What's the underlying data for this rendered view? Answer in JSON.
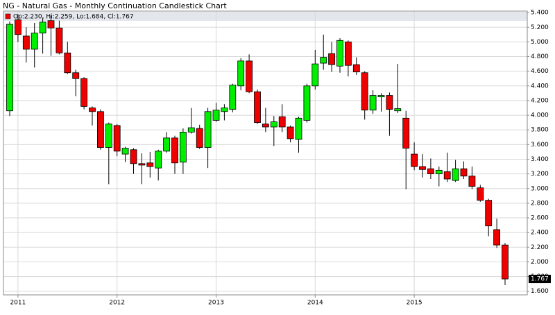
{
  "chart_data": {
    "type": "candlestick",
    "title": "NG - Natural Gas - Monthly Continuation Candlestick Chart",
    "legend": "Op:2.230, Hi:2.259, Lo:1.684, Cl:1.767",
    "last_close_label": "1.767",
    "up_color": "#00ee00",
    "down_color": "#ee0000",
    "categories": [
      null,
      "2011",
      null,
      null,
      null,
      null,
      null,
      null,
      null,
      null,
      null,
      null,
      null,
      "2012",
      null,
      null,
      null,
      null,
      null,
      null,
      null,
      null,
      null,
      null,
      null,
      "2013",
      null,
      null,
      null,
      null,
      null,
      null,
      null,
      null,
      null,
      null,
      null,
      "2014",
      null,
      null,
      null,
      null,
      null,
      null,
      null,
      null,
      null,
      null,
      null,
      "2015",
      null,
      null,
      null,
      null,
      null,
      null,
      null,
      null,
      null,
      null,
      null
    ],
    "open": [
      4.06,
      5.3,
      5.08,
      4.9,
      5.12,
      5.29,
      5.19,
      4.85,
      4.58,
      4.5,
      4.1,
      4.05,
      3.56,
      3.86,
      3.47,
      3.53,
      3.34,
      3.35,
      3.28,
      3.51,
      3.69,
      3.36,
      3.77,
      3.82,
      3.56,
      3.93,
      4.05,
      4.08,
      4.4,
      4.74,
      4.32,
      3.88,
      3.84,
      3.98,
      3.84,
      3.67,
      3.93,
      4.4,
      4.71,
      4.84,
      4.67,
      5.0,
      4.69,
      4.58,
      4.07,
      4.25,
      4.27,
      4.06,
      3.96,
      3.47,
      3.3,
      3.27,
      3.2,
      3.23,
      3.11,
      3.27,
      3.17,
      3.01,
      2.84,
      2.44,
      2.23
    ],
    "high": [
      5.28,
      5.38,
      5.2,
      5.26,
      5.33,
      5.36,
      5.29,
      5.0,
      4.62,
      4.52,
      4.12,
      4.08,
      3.9,
      3.88,
      3.57,
      3.55,
      3.48,
      3.5,
      3.53,
      3.77,
      3.72,
      3.82,
      4.1,
      3.87,
      4.1,
      4.17,
      4.15,
      4.43,
      4.78,
      4.83,
      4.35,
      4.1,
      3.99,
      4.15,
      3.86,
      3.98,
      4.43,
      4.89,
      5.1,
      5.0,
      5.05,
      5.02,
      4.79,
      4.6,
      4.34,
      4.3,
      4.31,
      4.7,
      4.06,
      3.63,
      3.47,
      3.41,
      3.3,
      3.49,
      3.39,
      3.37,
      3.3,
      3.05,
      2.86,
      2.59,
      2.259
    ],
    "low": [
      3.99,
      5.0,
      4.72,
      4.65,
      4.84,
      4.81,
      4.83,
      4.56,
      4.26,
      4.08,
      3.86,
      3.53,
      3.06,
      3.44,
      3.36,
      3.2,
      3.06,
      3.15,
      3.11,
      3.49,
      3.2,
      3.2,
      3.75,
      3.54,
      3.28,
      3.91,
      3.93,
      4.04,
      4.34,
      4.3,
      3.88,
      3.77,
      3.58,
      3.77,
      3.63,
      3.49,
      3.9,
      4.35,
      4.62,
      4.59,
      4.58,
      4.53,
      4.55,
      3.94,
      4.02,
      4.05,
      3.72,
      4.03,
      2.99,
      3.25,
      3.15,
      3.13,
      3.03,
      3.09,
      3.09,
      3.13,
      2.99,
      2.82,
      2.35,
      2.19,
      1.684
    ],
    "close": [
      5.24,
      5.1,
      4.9,
      5.12,
      5.27,
      5.19,
      4.85,
      4.58,
      4.5,
      4.12,
      4.05,
      3.56,
      3.88,
      3.51,
      3.55,
      3.34,
      3.32,
      3.3,
      3.51,
      3.69,
      3.35,
      3.77,
      3.83,
      3.56,
      4.05,
      4.07,
      4.1,
      4.41,
      4.74,
      4.32,
      3.9,
      3.84,
      3.91,
      3.84,
      3.68,
      3.96,
      4.4,
      4.7,
      4.79,
      4.69,
      5.02,
      4.68,
      4.59,
      4.07,
      4.27,
      4.27,
      4.08,
      4.09,
      3.55,
      3.3,
      3.26,
      3.2,
      3.25,
      3.13,
      3.27,
      3.17,
      3.03,
      2.84,
      2.49,
      2.23,
      1.767
    ],
    "ylim": [
      1.55,
      5.42
    ],
    "yticks": [
      {
        "value": 1.6,
        "label": "1.600"
      },
      {
        "value": 1.8,
        "label": "1.800"
      },
      {
        "value": 2.0,
        "label": "2.000"
      },
      {
        "value": 2.2,
        "label": "2.200"
      },
      {
        "value": 2.4,
        "label": "2.400"
      },
      {
        "value": 2.6,
        "label": "2.600"
      },
      {
        "value": 2.8,
        "label": "2.800"
      },
      {
        "value": 3.0,
        "label": "3.000"
      },
      {
        "value": 3.2,
        "label": "3.200"
      },
      {
        "value": 3.4,
        "label": "3.400"
      },
      {
        "value": 3.6,
        "label": "3.600"
      },
      {
        "value": 3.8,
        "label": "3.800"
      },
      {
        "value": 4.0,
        "label": "4.000"
      },
      {
        "value": 4.2,
        "label": "4.200"
      },
      {
        "value": 4.4,
        "label": "4.400"
      },
      {
        "value": 4.6,
        "label": "4.600"
      },
      {
        "value": 4.8,
        "label": "4.800"
      },
      {
        "value": 5.0,
        "label": "5.000"
      },
      {
        "value": 5.2,
        "label": "5.200"
      },
      {
        "value": 5.4,
        "label": "5.400"
      }
    ],
    "grid": true
  }
}
